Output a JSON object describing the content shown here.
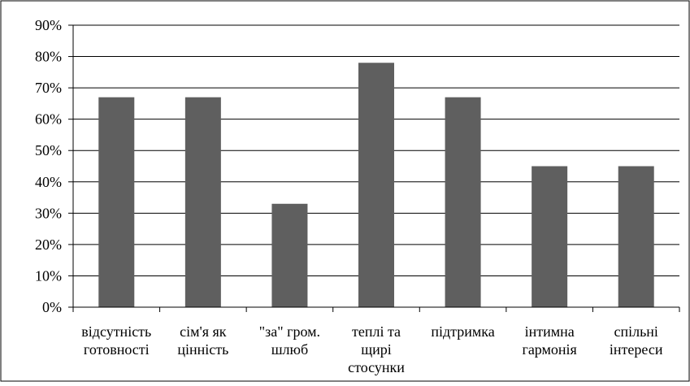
{
  "chart_data": {
    "type": "bar",
    "title": "",
    "xlabel": "",
    "ylabel": "",
    "categories": [
      [
        "відсутність",
        "готовності"
      ],
      [
        "сім'я як",
        "цінність"
      ],
      [
        "\"за\" гром.",
        "шлюб"
      ],
      [
        "теплі та",
        "щирі",
        "стосунки"
      ],
      [
        "підтримка"
      ],
      [
        "інтимна",
        "гармонія"
      ],
      [
        "спільні",
        "інтереси"
      ]
    ],
    "values": [
      67,
      67,
      33,
      78,
      67,
      45,
      45
    ],
    "ylim": [
      0,
      90
    ],
    "yticks": [
      0,
      10,
      20,
      30,
      40,
      50,
      60,
      70,
      80,
      90
    ],
    "ytick_labels": [
      "0%",
      "10%",
      "20%",
      "30%",
      "40%",
      "50%",
      "60%",
      "70%",
      "80%",
      "90%"
    ],
    "grid": true,
    "legend": "none",
    "colors": {
      "bar": "#5f5f5f",
      "grid": "#000000",
      "border": "#000000"
    }
  }
}
